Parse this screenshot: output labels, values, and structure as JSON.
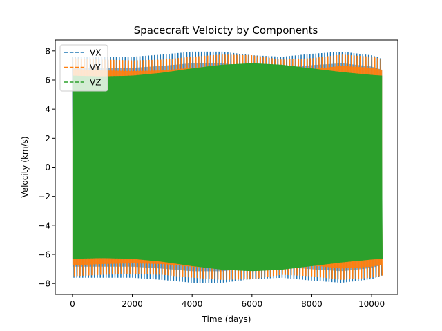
{
  "chart_data": {
    "type": "line",
    "title": "Spacecraft Veloicty by Components",
    "xlabel": "Time (days)",
    "ylabel": "Velocity (km/s)",
    "xlim": [
      -575,
      10875
    ],
    "ylim": [
      -8.75,
      8.75
    ],
    "x_ticks": [
      0,
      2000,
      4000,
      6000,
      8000,
      10000
    ],
    "x_tick_labels": [
      "0",
      "2000",
      "4000",
      "6000",
      "8000",
      "10000"
    ],
    "y_ticks": [
      -8,
      -6,
      -4,
      -2,
      0,
      2,
      4,
      6,
      8
    ],
    "y_tick_labels": [
      "−8",
      "−6",
      "−4",
      "−2",
      "0",
      "2",
      "4",
      "6",
      "8"
    ],
    "grid": false,
    "legend_position": "upper-left",
    "x_range": [
      0,
      10350
    ],
    "oscillation_period_days": 98,
    "series": [
      {
        "name": "VX",
        "color": "#1f77b4",
        "line_style": "dashed",
        "envelope_days": [
          0,
          1000,
          2000,
          3000,
          4000,
          5000,
          6000,
          7000,
          8000,
          9000,
          10000,
          10350
        ],
        "envelope_amplitude": [
          7.6,
          7.6,
          7.6,
          7.75,
          7.95,
          7.95,
          7.7,
          7.6,
          7.8,
          7.95,
          7.7,
          7.45
        ]
      },
      {
        "name": "VY",
        "color": "#ff7f0e",
        "line_style": "dashed",
        "envelope_days": [
          0,
          1000,
          2000,
          3000,
          4000,
          5000,
          6000,
          7000,
          8000,
          9000,
          10000,
          10350
        ],
        "envelope_amplitude": [
          7.5,
          7.4,
          7.35,
          7.4,
          7.6,
          7.75,
          7.7,
          7.4,
          7.5,
          7.75,
          7.6,
          7.45
        ]
      },
      {
        "name": "VZ",
        "color": "#2ca02c",
        "line_style": "dashed",
        "envelope_days": [
          0,
          1000,
          2000,
          3000,
          4000,
          5000,
          6000,
          7000,
          8000,
          9000,
          10000,
          10350
        ],
        "envelope_amplitude": [
          6.3,
          6.25,
          6.3,
          6.5,
          6.8,
          7.05,
          7.15,
          7.05,
          6.8,
          6.55,
          6.35,
          6.3
        ]
      }
    ]
  }
}
